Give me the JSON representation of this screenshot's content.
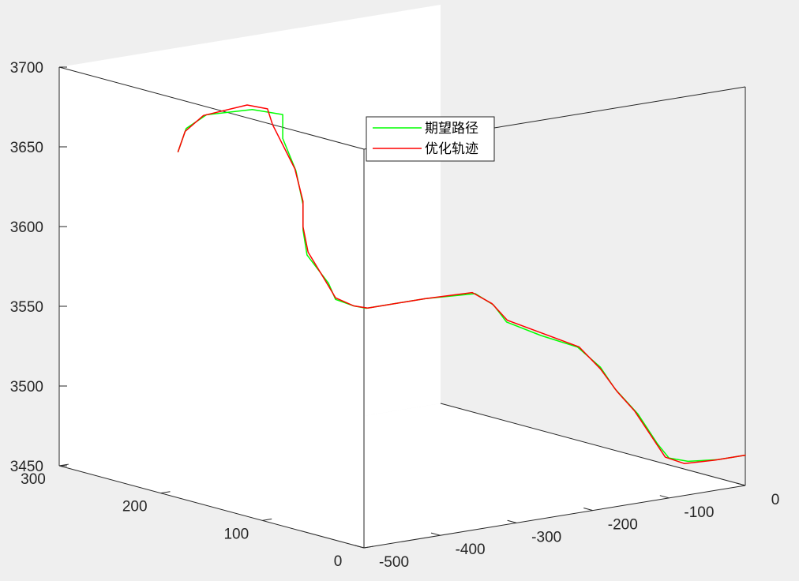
{
  "chart_data": {
    "type": "line",
    "projection": "3d",
    "title": "",
    "xlabel": "",
    "ylabel": "",
    "zlabel": "",
    "xlim": [
      -500,
      0
    ],
    "ylim": [
      0,
      300
    ],
    "zlim": [
      3450,
      3700
    ],
    "x_ticks": [
      "-500",
      "-400",
      "-300",
      "-200",
      "-100",
      "0"
    ],
    "y_ticks": [
      "0",
      "100",
      "200",
      "300"
    ],
    "z_ticks": [
      "3450",
      "3500",
      "3550",
      "3600",
      "3650",
      "3700"
    ],
    "grid": false,
    "box": "full",
    "legend_position": "upper-middle",
    "series": [
      {
        "name": "期望路径",
        "color": "#00ff00",
        "points": [
          [
            0,
            0,
            3469
          ],
          [
            -36,
            0,
            3469
          ],
          [
            -75,
            0,
            3471
          ],
          [
            -100,
            0,
            3475
          ],
          [
            -115,
            0,
            3485
          ],
          [
            -141,
            0,
            3506
          ],
          [
            -171,
            0,
            3524
          ],
          [
            -190,
            0,
            3539
          ],
          [
            -220,
            0,
            3554
          ],
          [
            -268,
            0,
            3565
          ],
          [
            -313,
            0,
            3577
          ],
          [
            -330,
            0,
            3589
          ],
          [
            -354,
            0,
            3598
          ],
          [
            -419,
            0,
            3600
          ],
          [
            -497,
            0,
            3600
          ],
          [
            -500,
            10,
            3600
          ],
          [
            -500,
            28,
            3601
          ],
          [
            -500,
            35,
            3610
          ],
          [
            -500,
            56,
            3624
          ],
          [
            -500,
            60,
            3639
          ],
          [
            -500,
            60,
            3655
          ],
          [
            -500,
            67,
            3675
          ],
          [
            -500,
            80,
            3693
          ],
          [
            -500,
            80,
            3708
          ],
          [
            -500,
            110,
            3706
          ],
          [
            -500,
            155,
            3695
          ],
          [
            -500,
            175,
            3683
          ],
          [
            -500,
            183,
            3667
          ]
        ]
      },
      {
        "name": "优化轨迹",
        "color": "#ff0000",
        "points": [
          [
            0,
            0,
            3469
          ],
          [
            -40,
            0,
            3469
          ],
          [
            -80,
            0,
            3470
          ],
          [
            -105,
            0,
            3476
          ],
          [
            -125,
            0,
            3492
          ],
          [
            -145,
            0,
            3508
          ],
          [
            -168,
            0,
            3522
          ],
          [
            -190,
            0,
            3538
          ],
          [
            -218,
            0,
            3554
          ],
          [
            -265,
            0,
            3566
          ],
          [
            -312,
            0,
            3578
          ],
          [
            -332,
            0,
            3590
          ],
          [
            -358,
            0,
            3599
          ],
          [
            -420,
            0,
            3600
          ],
          [
            -495,
            0,
            3600
          ],
          [
            -500,
            10,
            3600
          ],
          [
            -500,
            28,
            3602
          ],
          [
            -500,
            38,
            3611
          ],
          [
            -500,
            55,
            3626
          ],
          [
            -500,
            60,
            3641
          ],
          [
            -500,
            60,
            3657
          ],
          [
            -500,
            68,
            3676
          ],
          [
            -500,
            90,
            3700
          ],
          [
            -500,
            95,
            3709
          ],
          [
            -500,
            115,
            3708
          ],
          [
            -500,
            158,
            3694
          ],
          [
            -500,
            176,
            3681
          ],
          [
            -500,
            183,
            3667
          ]
        ]
      }
    ]
  }
}
